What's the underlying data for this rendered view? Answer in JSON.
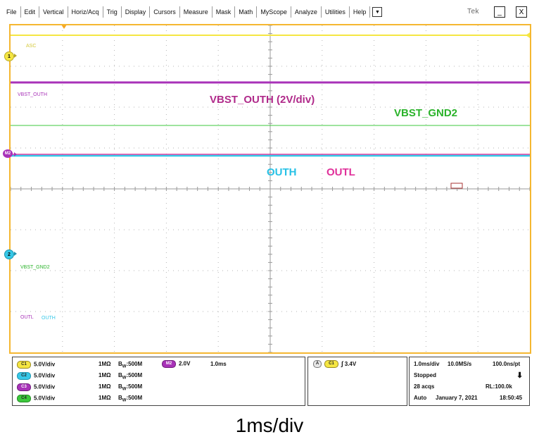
{
  "menu": {
    "items": [
      "File",
      "Edit",
      "Vertical",
      "Horiz/Acq",
      "Trig",
      "Display",
      "Cursors",
      "Measure",
      "Mask",
      "Math",
      "MyScope",
      "Analyze",
      "Utilities",
      "Help"
    ],
    "dropdown_icon": "chevron-down-icon",
    "brand": "Tek",
    "minimize_label": "_",
    "close_label": "X"
  },
  "colors": {
    "ch1": "#f5e642",
    "ch2": "#36c8e8",
    "ch3": "#a832b8",
    "ch4": "#3cc83c",
    "math": "#a832b8",
    "vbst_gnd2_text": "#2bb32b",
    "vbst_outh_text": "#b02a8a",
    "outh_text": "#26c1e6",
    "outl_text": "#e0309a",
    "graticule_border": "#f5b731"
  },
  "screen": {
    "trace_labels": {
      "ch1": "ASC",
      "vbst_outh": "VBST_OUTH",
      "vbst_gnd2": "VBST_GND2",
      "outl": "OUTL",
      "outh": "OUTH"
    },
    "markers": {
      "ch1": "1",
      "math": "M2",
      "ch2": "2"
    },
    "annotations": {
      "vbst_outh": "VBST_OUTH (2V/div)",
      "vbst_gnd2": "VBST_GND2",
      "outh": "OUTH",
      "outl": "OUTL"
    }
  },
  "channels": {
    "rows": [
      {
        "badge": "C1",
        "scale": "5.0V/div",
        "impedance": "1MΩ",
        "bw_prefix": "B",
        "bw_sub": "W",
        "bw_value": ":500M"
      },
      {
        "badge": "C2",
        "scale": "5.0V/div",
        "impedance": "1MΩ",
        "bw_prefix": "B",
        "bw_sub": "W",
        "bw_value": ":500M"
      },
      {
        "badge": "C3",
        "scale": "5.0V/div",
        "impedance": "1MΩ",
        "bw_prefix": "B",
        "bw_sub": "W",
        "bw_value": ":500M"
      },
      {
        "badge": "C4",
        "scale": "5.0V/div",
        "impedance": "1MΩ",
        "bw_prefix": "B",
        "bw_sub": "W",
        "bw_value": ":500M"
      }
    ],
    "math": {
      "badge": "M2",
      "scale": "2.0V",
      "time": "1.0ms"
    }
  },
  "trigger": {
    "mode_badge": "A",
    "source_badge": "C1",
    "slope_icon": "rising-edge-icon",
    "level": "3.4V"
  },
  "timebase": {
    "time_div": "1.0ms/div",
    "sample_rate": "10.0MS/s",
    "resolution": "100.0ns/pt",
    "state": "Stopped",
    "acqs": "28 acqs",
    "record_length": "RL:100.0k",
    "trigger_mode": "Auto",
    "date": "January 7, 2021",
    "time": "18:50:45"
  },
  "caption": "1ms/div"
}
